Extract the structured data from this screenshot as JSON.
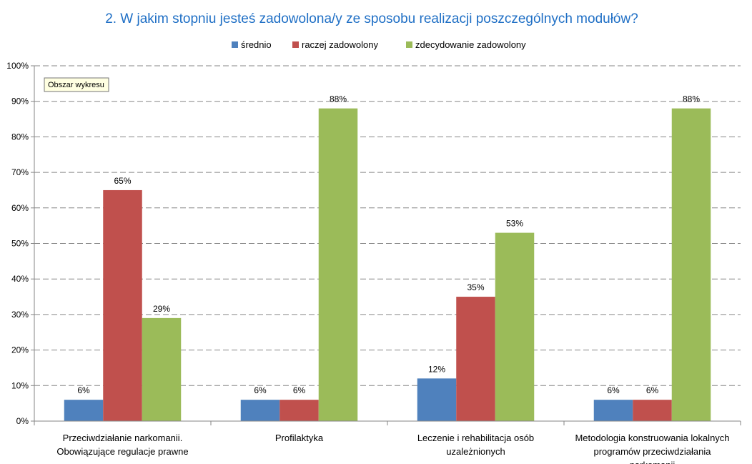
{
  "chart_data": {
    "type": "bar",
    "title": "2. W jakim stopniu jesteś zadowolona/y ze sposobu realizacji poszczególnych modułów?",
    "categories": [
      [
        "Przeciwdziałanie narkomanii.",
        "Obowiązujące regulacje prawne"
      ],
      [
        "Profilaktyka"
      ],
      [
        "Leczenie i rehabilitacja osób",
        "uzależnionych"
      ],
      [
        "Metodologia konstruowania lokalnych",
        "programów przeciwdziałania",
        "narkomanii"
      ]
    ],
    "series": [
      {
        "name": "średnio",
        "color": "#4f81bd",
        "values": [
          6,
          6,
          12,
          6
        ]
      },
      {
        "name": "raczej zadowolony",
        "color": "#c0504d",
        "values": [
          65,
          6,
          35,
          6
        ]
      },
      {
        "name": "zdecydowanie zadowolony",
        "color": "#9bbb59",
        "values": [
          29,
          88,
          53,
          88
        ]
      }
    ],
    "value_suffix": "%",
    "ylim": [
      0,
      100
    ],
    "yticks": [
      "0%",
      "10%",
      "20%",
      "30%",
      "40%",
      "50%",
      "60%",
      "70%",
      "80%",
      "90%",
      "100%"
    ],
    "grid": true,
    "legend_position": "top",
    "title_color": "#1f6fc5",
    "tooltip": "Obszar wykresu"
  }
}
